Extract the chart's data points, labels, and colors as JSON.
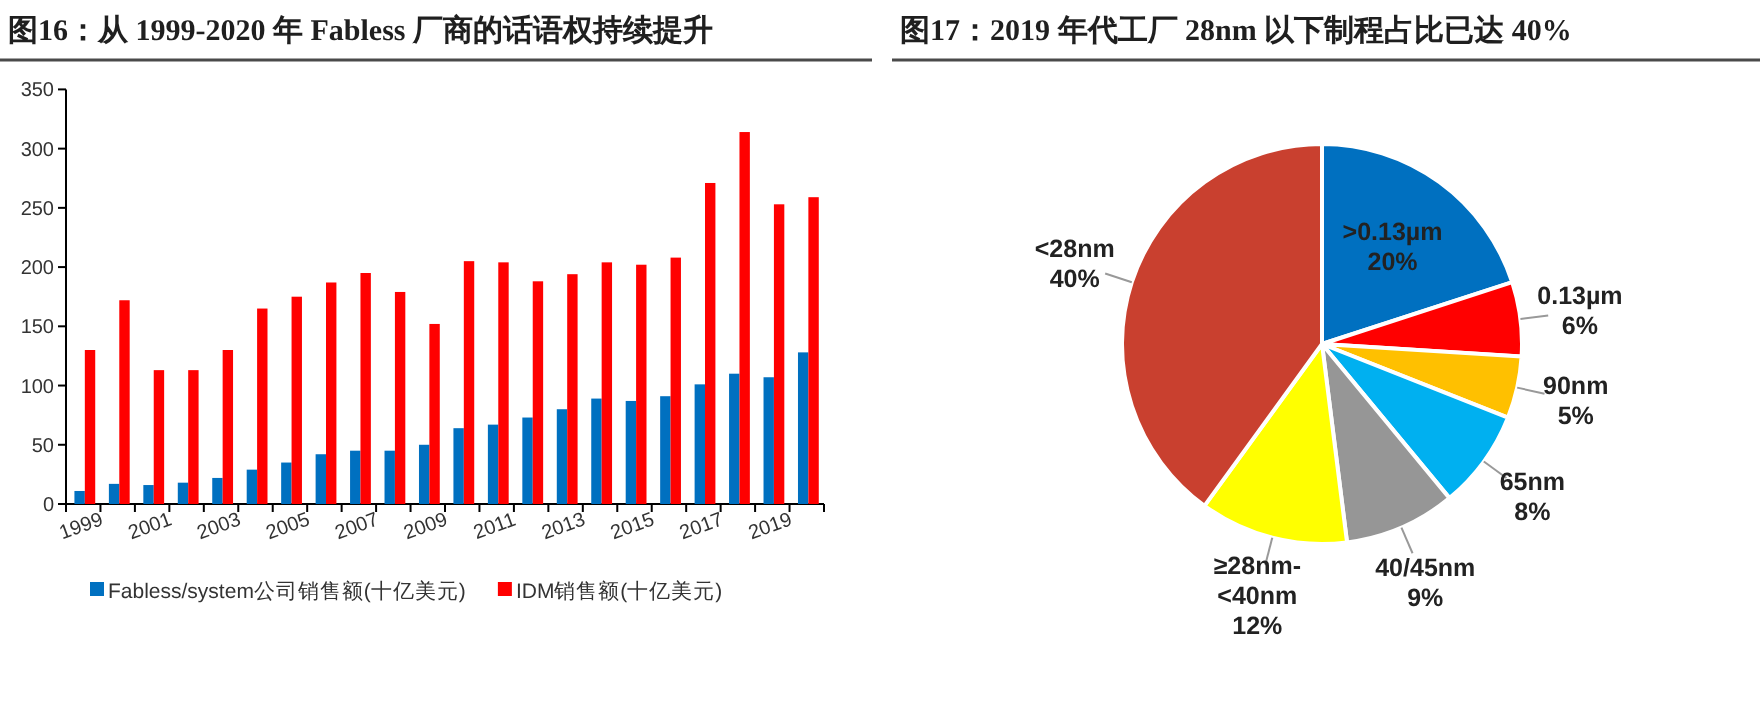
{
  "chart_data": [
    {
      "type": "bar",
      "title": "图16：从 1999-2020 年 Fabless 厂商的话语权持续提升",
      "categories": [
        "1999",
        null,
        "2001",
        null,
        "2003",
        null,
        "2005",
        null,
        "2007",
        null,
        "2009",
        null,
        "2011",
        null,
        "2013",
        null,
        "2015",
        null,
        "2017",
        null,
        "2019",
        null
      ],
      "series": [
        {
          "name": "Fabless/system公司销售额(十亿美元)",
          "color": "#0070c0",
          "values": [
            11,
            17,
            16,
            18,
            22,
            29,
            35,
            42,
            45,
            45,
            50,
            64,
            67,
            73,
            80,
            89,
            87,
            91,
            101,
            110,
            107,
            128
          ]
        },
        {
          "name": "IDM销售额(十亿美元)",
          "color": "#ff0000",
          "values": [
            130,
            172,
            113,
            113,
            130,
            165,
            175,
            187,
            195,
            179,
            152,
            205,
            204,
            188,
            194,
            204,
            202,
            208,
            271,
            314,
            253,
            259
          ]
        }
      ],
      "ylim": [
        0,
        350
      ],
      "yticks": [
        0,
        50,
        100,
        150,
        200,
        250,
        300,
        350
      ],
      "grid": false,
      "legend": "bottom"
    },
    {
      "type": "pie",
      "title": "图17：2019 年代工厂 28nm 以下制程占比已达 40%",
      "categories": [
        ">0.13µm",
        "0.13µm",
        "90nm",
        "65nm",
        "40/45nm",
        "≥28nm-<40nm",
        "<28nm"
      ],
      "values": [
        20,
        6,
        5,
        8,
        9,
        12,
        40
      ],
      "value_labels": [
        "20%",
        "6%",
        "5%",
        "8%",
        "9%",
        "12%",
        "40%"
      ],
      "colors": [
        "#0070c0",
        "#ff0000",
        "#ffc000",
        "#00b0f0",
        "#969696",
        "#ffff00",
        "#c9402f"
      ]
    }
  ]
}
